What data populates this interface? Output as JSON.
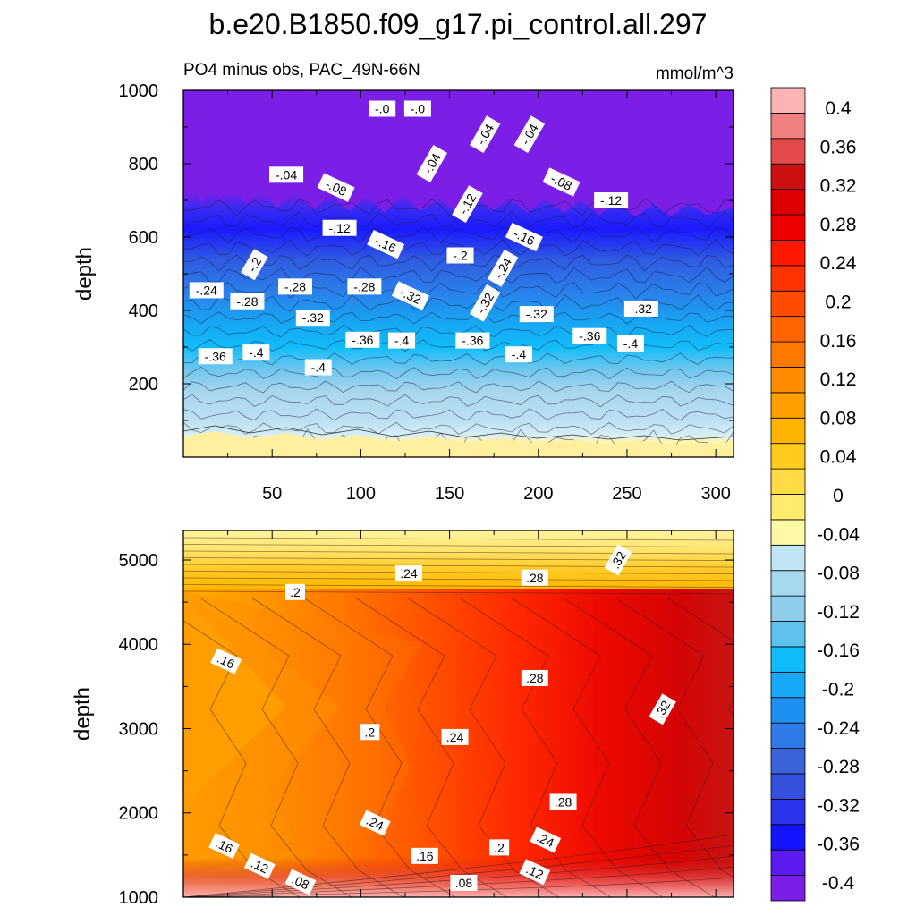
{
  "title": "b.e20.B1850.f09_g17.pi_control.all.297",
  "subtitle_left": "PO4 minus obs, PAC_49N-66N",
  "subtitle_right": "mmol/m^3",
  "colorbar_labels": [
    "0.4",
    "0.36",
    "0.32",
    "0.28",
    "0.24",
    "0.2",
    "0.16",
    "0.12",
    "0.08",
    "0.04",
    "0",
    "-0.04",
    "-0.08",
    "-0.12",
    "-0.16",
    "-0.2",
    "-0.24",
    "-0.28",
    "-0.32",
    "-0.36",
    "-0.4"
  ],
  "colors": {
    "levels_bottom_to_top": [
      "#7b1ee6",
      "#5b1af0",
      "#1414ff",
      "#2a34ea",
      "#3450dc",
      "#3c64d8",
      "#2e7ae6",
      "#1e90f0",
      "#18a8f5",
      "#10bcf8",
      "#5ec2ee",
      "#90cdec",
      "#a6d8ee",
      "#c2e5f5",
      "#fff9a6",
      "#ffeb6e",
      "#ffdc46",
      "#ffcc1e",
      "#ffb400",
      "#ffa000",
      "#ff8c00",
      "#ff7800",
      "#ff6400",
      "#ff4c00",
      "#ff3200",
      "#ff1800",
      "#ee0000",
      "#dc0000",
      "#cc1010",
      "#e34a4a",
      "#f08080",
      "#fbb4b4"
    ]
  },
  "chart_data": [
    {
      "type": "heatmap",
      "panel": "upper",
      "ylabel": "depth",
      "xlabel": "",
      "xlim": [
        0,
        310
      ],
      "ylim": [
        1000,
        0
      ],
      "x_ticks": [
        50,
        100,
        150,
        200,
        250,
        300
      ],
      "y_ticks": [
        200,
        400,
        600,
        800,
        1000
      ],
      "contour_labels": [
        {
          "text": "-.36",
          "x": 18,
          "y": 275
        },
        {
          "text": "-.4",
          "x": 41,
          "y": 285
        },
        {
          "text": "-.4",
          "x": 76,
          "y": 245
        },
        {
          "text": "-.32",
          "x": 73,
          "y": 380
        },
        {
          "text": "-.36",
          "x": 101,
          "y": 320
        },
        {
          "text": "-.4",
          "x": 123,
          "y": 318
        },
        {
          "text": "-.36",
          "x": 163,
          "y": 318
        },
        {
          "text": "-.4",
          "x": 189,
          "y": 280
        },
        {
          "text": "-.36",
          "x": 229,
          "y": 330
        },
        {
          "text": "-.4",
          "x": 252,
          "y": 310
        },
        {
          "text": "-.24",
          "x": 13,
          "y": 455
        },
        {
          "text": "-.28",
          "x": 36,
          "y": 425
        },
        {
          "text": "-.28",
          "x": 63,
          "y": 465
        },
        {
          "text": "-.28",
          "x": 102,
          "y": 465
        },
        {
          "text": "-.32",
          "x": 128,
          "y": 440
        },
        {
          "text": "-.32",
          "x": 170,
          "y": 420
        },
        {
          "text": "-.32",
          "x": 199,
          "y": 390
        },
        {
          "text": "-.32",
          "x": 258,
          "y": 405
        },
        {
          "text": "-.2",
          "x": 40,
          "y": 525
        },
        {
          "text": "-.16",
          "x": 114,
          "y": 580
        },
        {
          "text": "-.2",
          "x": 156,
          "y": 550
        },
        {
          "text": "-.24",
          "x": 180,
          "y": 515
        },
        {
          "text": "-.12",
          "x": 88,
          "y": 625
        },
        {
          "text": "-.16",
          "x": 192,
          "y": 600
        },
        {
          "text": "-.12",
          "x": 160,
          "y": 690
        },
        {
          "text": "-.12",
          "x": 241,
          "y": 700
        },
        {
          "text": "-.08",
          "x": 86,
          "y": 735
        },
        {
          "text": "-.08",
          "x": 213,
          "y": 750
        },
        {
          "text": "-.04",
          "x": 58,
          "y": 770
        },
        {
          "text": "-.04",
          "x": 140,
          "y": 800
        },
        {
          "text": "-.04",
          "x": 170,
          "y": 880
        },
        {
          "text": "-.04",
          "x": 195,
          "y": 880
        },
        {
          "text": "-.0",
          "x": 112,
          "y": 950
        },
        {
          "text": "-.0",
          "x": 132,
          "y": 950
        }
      ]
    },
    {
      "type": "heatmap",
      "panel": "lower",
      "ylabel": "depth",
      "xlabel": "",
      "xlim": [
        0,
        310
      ],
      "ylim": [
        5350,
        1000
      ],
      "x_ticks": [
        50,
        100,
        150,
        200,
        250,
        300
      ],
      "y_ticks": [
        1000,
        2000,
        3000,
        4000,
        5000
      ],
      "contour_labels": [
        {
          "text": ".08",
          "x": 66,
          "y": 1180
        },
        {
          "text": ".08",
          "x": 158,
          "y": 1170
        },
        {
          "text": ".12",
          "x": 43,
          "y": 1370
        },
        {
          "text": ".12",
          "x": 198,
          "y": 1300
        },
        {
          "text": ".16",
          "x": 23,
          "y": 1610
        },
        {
          "text": ".16",
          "x": 136,
          "y": 1490
        },
        {
          "text": ".2",
          "x": 178,
          "y": 1590
        },
        {
          "text": ".24",
          "x": 204,
          "y": 1680
        },
        {
          "text": ".24",
          "x": 108,
          "y": 1880
        },
        {
          "text": ".28",
          "x": 214,
          "y": 2130
        },
        {
          "text": ".2",
          "x": 105,
          "y": 2960
        },
        {
          "text": ".24",
          "x": 153,
          "y": 2900
        },
        {
          "text": ".32",
          "x": 270,
          "y": 3230
        },
        {
          "text": ".28",
          "x": 198,
          "y": 3600
        },
        {
          "text": ".16",
          "x": 24,
          "y": 3800
        },
        {
          "text": ".2",
          "x": 63,
          "y": 4620
        },
        {
          "text": ".24",
          "x": 127,
          "y": 4840
        },
        {
          "text": ".28",
          "x": 198,
          "y": 4790
        },
        {
          "text": ".32",
          "x": 245,
          "y": 5000
        }
      ]
    }
  ]
}
